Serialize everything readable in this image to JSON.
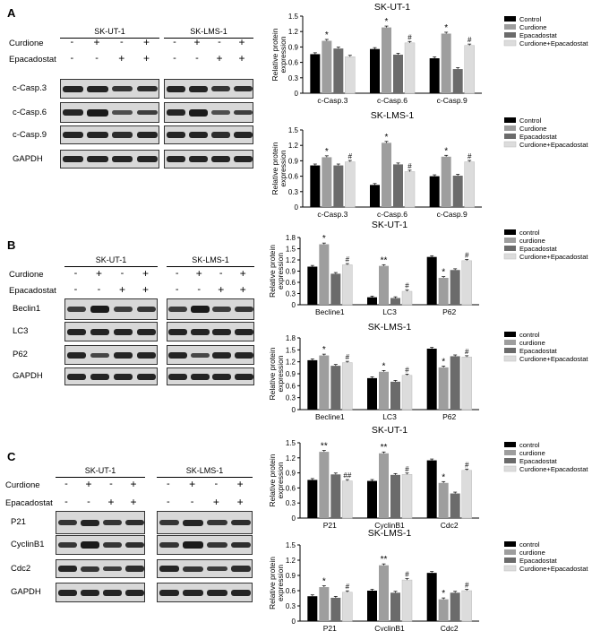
{
  "panel_labels": [
    "A",
    "B",
    "C"
  ],
  "blot_panels": [
    {
      "label": "A",
      "cell_lines": [
        "SK-UT-1",
        "SK-LMS-1"
      ],
      "treatments": [
        {
          "name": "Curdione",
          "signs": [
            "-",
            "+",
            "-",
            "+"
          ]
        },
        {
          "name": "Epacadostat",
          "signs": [
            "-",
            "-",
            "+",
            "+"
          ]
        }
      ],
      "proteins": [
        "c-Casp.3",
        "c-Casp.6",
        "c-Casp.9",
        "GAPDH"
      ]
    },
    {
      "label": "B",
      "cell_lines": [
        "SK-UT-1",
        "SK-LMS-1"
      ],
      "treatments": [
        {
          "name": "Curdione",
          "signs": [
            "-",
            "+",
            "-",
            "+"
          ]
        },
        {
          "name": "Epacadostat",
          "signs": [
            "-",
            "-",
            "+",
            "+"
          ]
        }
      ],
      "proteins": [
        "Beclin1",
        "LC3",
        "P62",
        "GAPDH"
      ]
    },
    {
      "label": "C",
      "cell_lines": [
        "SK-UT-1",
        "SK-LMS-1"
      ],
      "treatments": [
        {
          "name": "Curdione",
          "signs": [
            "-",
            "+",
            "-",
            "+"
          ]
        },
        {
          "name": "Epacadostat",
          "signs": [
            "-",
            "-",
            "+",
            "+"
          ]
        }
      ],
      "proteins": [
        "P21",
        "CyclinB1",
        "Cdc2",
        "GAPDH"
      ]
    }
  ],
  "chart_data": [
    {
      "type": "bar",
      "title": "SK-UT-1",
      "ylabel": "Relative protein expression",
      "ylim": [
        0,
        1.5
      ],
      "yticks": [
        0,
        0.3,
        0.6,
        0.9,
        1.2,
        1.5
      ],
      "categories": [
        "c-Casp.3",
        "c-Casp.6",
        "c-Casp.9"
      ],
      "legend": [
        "Control",
        "Curdione",
        "Epacadostat",
        "Curdione+Epacadostat"
      ],
      "series": [
        {
          "name": "Control",
          "values": [
            0.76,
            0.86,
            0.68
          ]
        },
        {
          "name": "Curdione",
          "values": [
            1.02,
            1.28,
            1.16
          ]
        },
        {
          "name": "Epacadostat",
          "values": [
            0.87,
            0.75,
            0.47
          ]
        },
        {
          "name": "Curdione+Epacadostat",
          "values": [
            0.71,
            0.98,
            0.93
          ]
        }
      ],
      "annotations": [
        [
          "",
          "*",
          "",
          ""
        ],
        [
          "",
          "*",
          "",
          "#"
        ],
        [
          "",
          "*",
          "",
          "#"
        ]
      ]
    },
    {
      "type": "bar",
      "title": "SK-LMS-1",
      "ylabel": "Relative protein expression",
      "ylim": [
        0,
        1.5
      ],
      "yticks": [
        0,
        0.3,
        0.6,
        0.9,
        1.2,
        1.5
      ],
      "categories": [
        "c-Casp.3",
        "c-Casp.6",
        "c-Casp.9"
      ],
      "legend": [
        "Control",
        "Curdione",
        "Epacadostat",
        "Curdione+Epacadostat"
      ],
      "series": [
        {
          "name": "Control",
          "values": [
            0.81,
            0.43,
            0.6
          ]
        },
        {
          "name": "Curdione",
          "values": [
            0.97,
            1.25,
            0.98
          ]
        },
        {
          "name": "Epacadostat",
          "values": [
            0.81,
            0.83,
            0.61
          ]
        },
        {
          "name": "Curdione+Epacadostat",
          "values": [
            0.88,
            0.69,
            0.88
          ]
        }
      ],
      "annotations": [
        [
          "",
          "*",
          "",
          "#"
        ],
        [
          "",
          "*",
          "",
          "#"
        ],
        [
          "",
          "*",
          "",
          "#"
        ]
      ]
    },
    {
      "type": "bar",
      "title": "SK-UT-1",
      "ylabel": "Relative protein expression",
      "ylim": [
        0,
        1.8
      ],
      "yticks": [
        0,
        0.3,
        0.6,
        0.9,
        1.2,
        1.5,
        1.8
      ],
      "categories": [
        "Becline1",
        "LC3",
        "P62"
      ],
      "legend": [
        "control",
        "curdione",
        "Epacadostat",
        "Curdione+Epacadostat"
      ],
      "series": [
        {
          "name": "control",
          "values": [
            1.02,
            0.2,
            1.28
          ]
        },
        {
          "name": "curdione",
          "values": [
            1.62,
            1.04,
            0.72
          ]
        },
        {
          "name": "Epacadostat",
          "values": [
            0.83,
            0.18,
            0.93
          ]
        },
        {
          "name": "Curdione+Epacadostat",
          "values": [
            1.07,
            0.36,
            1.18
          ]
        }
      ],
      "annotations": [
        [
          "",
          "*",
          "",
          "#"
        ],
        [
          "",
          "**",
          "",
          "#"
        ],
        [
          "",
          "*",
          "",
          "#"
        ]
      ]
    },
    {
      "type": "bar",
      "title": "SK-LMS-1",
      "ylabel": "Relative protein expression",
      "ylim": [
        0,
        1.8
      ],
      "yticks": [
        0,
        0.3,
        0.6,
        0.9,
        1.2,
        1.5,
        1.8
      ],
      "categories": [
        "Becline1",
        "LC3",
        "P62"
      ],
      "legend": [
        "control",
        "curdione",
        "Epacadostat",
        "Curdione+Epacadostat"
      ],
      "series": [
        {
          "name": "control",
          "values": [
            1.24,
            0.79,
            1.53
          ]
        },
        {
          "name": "curdione",
          "values": [
            1.36,
            0.95,
            1.06
          ]
        },
        {
          "name": "Epacadostat",
          "values": [
            1.1,
            0.7,
            1.34
          ]
        },
        {
          "name": "Curdione+Epacadostat",
          "values": [
            1.18,
            0.86,
            1.32
          ]
        }
      ],
      "annotations": [
        [
          "",
          "*",
          "",
          "#"
        ],
        [
          "",
          "*",
          "",
          "#"
        ],
        [
          "",
          "*",
          "",
          "#"
        ]
      ]
    },
    {
      "type": "bar",
      "title": "SK-UT-1",
      "ylabel": "Relative protein expression",
      "ylim": [
        0,
        1.5
      ],
      "yticks": [
        0,
        0.3,
        0.6,
        0.9,
        1.2,
        1.5
      ],
      "categories": [
        "P21",
        "CyclinB1",
        "Cdc2"
      ],
      "legend": [
        "control",
        "curdione",
        "Epacadostat",
        "Curdione+Epacadostat"
      ],
      "series": [
        {
          "name": "control",
          "values": [
            0.76,
            0.74,
            1.15
          ]
        },
        {
          "name": "curdione",
          "values": [
            1.32,
            1.29,
            0.7
          ]
        },
        {
          "name": "Epacadostat",
          "values": [
            0.87,
            0.86,
            0.49
          ]
        },
        {
          "name": "Curdione+Epacadostat",
          "values": [
            0.74,
            0.87,
            0.95
          ]
        }
      ],
      "annotations": [
        [
          "",
          "**",
          "",
          "##"
        ],
        [
          "",
          "**",
          "",
          "#"
        ],
        [
          "",
          "*",
          "",
          "#"
        ]
      ]
    },
    {
      "type": "bar",
      "title": "SK-LMS-1",
      "ylabel": "Relative protein expression",
      "ylim": [
        0,
        1.5
      ],
      "yticks": [
        0,
        0.3,
        0.6,
        0.9,
        1.2,
        1.5
      ],
      "categories": [
        "P21",
        "CyclinB1",
        "Cdc2"
      ],
      "legend": [
        "control",
        "curdione",
        "Epacadostat",
        "Curdione+Epacadostat"
      ],
      "series": [
        {
          "name": "control",
          "values": [
            0.49,
            0.6,
            0.95
          ]
        },
        {
          "name": "curdione",
          "values": [
            0.67,
            1.1,
            0.43
          ]
        },
        {
          "name": "Epacadostat",
          "values": [
            0.46,
            0.56,
            0.56
          ]
        },
        {
          "name": "Curdione+Epacadostat",
          "values": [
            0.57,
            0.81,
            0.6
          ]
        }
      ],
      "annotations": [
        [
          "",
          "*",
          "",
          "#"
        ],
        [
          "",
          "**",
          "",
          "#"
        ],
        [
          "",
          "*",
          "",
          "#"
        ]
      ]
    }
  ],
  "colors": {
    "control": "#000000",
    "curdione": "#9e9e9e",
    "epacadostat": "#6b6b6b",
    "combo": "#dcdcdc"
  }
}
